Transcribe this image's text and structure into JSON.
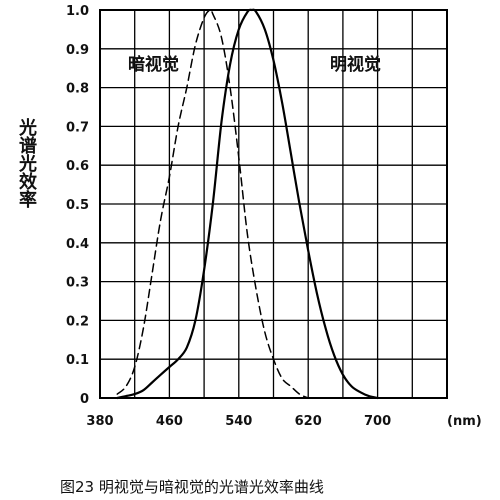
{
  "chart_data": {
    "type": "line",
    "xlabel": "(nm)",
    "ylabel": "光谱光效率",
    "caption": "图23 明视觉与暗视觉的光谱光效率曲线",
    "xlim": [
      380,
      780
    ],
    "ylim": [
      0,
      1.0
    ],
    "x_ticks": [
      "380",
      "460",
      "540",
      "620",
      "700"
    ],
    "y_ticks": [
      "0",
      "0.1",
      "0.2",
      "0.3",
      "0.4",
      "0.5",
      "0.6",
      "0.7",
      "0.8",
      "0.9",
      "1.0"
    ],
    "grid": true,
    "series": [
      {
        "name": "暗视觉",
        "style": "dashed",
        "x": [
          400,
          410,
          420,
          430,
          440,
          450,
          460,
          470,
          480,
          490,
          500,
          507,
          510,
          520,
          530,
          540,
          550,
          560,
          570,
          580,
          590,
          600,
          610,
          620
        ],
        "values": [
          0.01,
          0.03,
          0.08,
          0.18,
          0.32,
          0.46,
          0.57,
          0.7,
          0.8,
          0.91,
          0.98,
          1.0,
          0.99,
          0.93,
          0.8,
          0.62,
          0.42,
          0.28,
          0.17,
          0.1,
          0.05,
          0.03,
          0.01,
          0.0
        ]
      },
      {
        "name": "明视觉",
        "style": "solid",
        "x": [
          400,
          410,
          420,
          430,
          440,
          450,
          460,
          470,
          480,
          490,
          500,
          510,
          520,
          530,
          540,
          550,
          555,
          560,
          570,
          580,
          590,
          600,
          610,
          620,
          630,
          640,
          650,
          660,
          670,
          680,
          690,
          700
        ],
        "values": [
          0.0,
          0.005,
          0.01,
          0.02,
          0.04,
          0.06,
          0.08,
          0.1,
          0.13,
          0.2,
          0.33,
          0.5,
          0.71,
          0.86,
          0.95,
          0.995,
          1.0,
          0.995,
          0.95,
          0.87,
          0.76,
          0.63,
          0.5,
          0.38,
          0.27,
          0.18,
          0.11,
          0.06,
          0.03,
          0.015,
          0.005,
          0.0
        ]
      }
    ]
  }
}
